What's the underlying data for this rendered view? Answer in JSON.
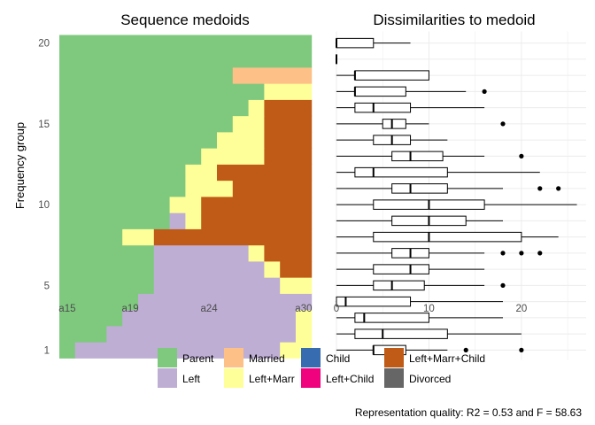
{
  "chart_data": [
    {
      "type": "heatmap",
      "title": "Sequence medoids",
      "ylabel": "Frequency group",
      "x_ticks": [
        "a15",
        "a19",
        "a24",
        "a30"
      ],
      "x_tick_positions": [
        1,
        5,
        10,
        16
      ],
      "y_ticks": [
        "1",
        "5",
        "10",
        "15",
        "20"
      ],
      "n_positions": 16,
      "states": [
        "Parent",
        "Left",
        "Married",
        "Left+Marr",
        "Child",
        "Left+Child",
        "Left+Marr+Child",
        "Divorced"
      ],
      "colors": {
        "Parent": "#7FC97F",
        "Left": "#BEAED4",
        "Married": "#FDC086",
        "Left+Marr": "#FFFF99",
        "Child": "#386CB0",
        "Left+Child": "#F0027F",
        "Left+Marr+Child": "#BF5B17",
        "Divorced": "#666666"
      },
      "sequences": [
        {
          "group": 1,
          "runs": [
            [
              "Parent",
              1
            ],
            [
              "Left",
              13
            ],
            [
              "Left+Marr",
              2
            ]
          ]
        },
        {
          "group": 2,
          "runs": [
            [
              "Parent",
              3
            ],
            [
              "Left",
              12
            ],
            [
              "Left+Marr",
              1
            ]
          ]
        },
        {
          "group": 3,
          "runs": [
            [
              "Parent",
              4
            ],
            [
              "Left",
              11
            ],
            [
              "Left+Marr",
              1
            ]
          ]
        },
        {
          "group": 4,
          "runs": [
            [
              "Parent",
              5
            ],
            [
              "Left",
              11
            ]
          ]
        },
        {
          "group": 5,
          "runs": [
            [
              "Parent",
              6
            ],
            [
              "Left",
              8
            ],
            [
              "Left+Marr",
              2
            ]
          ]
        },
        {
          "group": 6,
          "runs": [
            [
              "Parent",
              6
            ],
            [
              "Left",
              7
            ],
            [
              "Left+Marr",
              1
            ],
            [
              "Left+Marr+Child",
              2
            ]
          ]
        },
        {
          "group": 7,
          "runs": [
            [
              "Parent",
              6
            ],
            [
              "Left",
              6
            ],
            [
              "Left+Marr",
              1
            ],
            [
              "Left+Marr+Child",
              3
            ]
          ]
        },
        {
          "group": 8,
          "runs": [
            [
              "Parent",
              4
            ],
            [
              "Left+Marr",
              2
            ],
            [
              "Left+Marr+Child",
              10
            ]
          ]
        },
        {
          "group": 9,
          "runs": [
            [
              "Parent",
              7
            ],
            [
              "Left",
              1
            ],
            [
              "Left+Marr",
              1
            ],
            [
              "Left+Marr+Child",
              7
            ]
          ]
        },
        {
          "group": 10,
          "runs": [
            [
              "Parent",
              7
            ],
            [
              "Left+Marr",
              2
            ],
            [
              "Left+Marr+Child",
              7
            ]
          ]
        },
        {
          "group": 11,
          "runs": [
            [
              "Parent",
              8
            ],
            [
              "Left+Marr",
              3
            ],
            [
              "Left+Marr+Child",
              5
            ]
          ]
        },
        {
          "group": 12,
          "runs": [
            [
              "Parent",
              8
            ],
            [
              "Left+Marr",
              2
            ],
            [
              "Left+Marr+Child",
              6
            ]
          ]
        },
        {
          "group": 13,
          "runs": [
            [
              "Parent",
              9
            ],
            [
              "Left+Marr",
              4
            ],
            [
              "Left+Marr+Child",
              3
            ]
          ]
        },
        {
          "group": 14,
          "runs": [
            [
              "Parent",
              10
            ],
            [
              "Left+Marr",
              3
            ],
            [
              "Left+Marr+Child",
              3
            ]
          ]
        },
        {
          "group": 15,
          "runs": [
            [
              "Parent",
              11
            ],
            [
              "Left+Marr",
              2
            ],
            [
              "Left+Marr+Child",
              3
            ]
          ]
        },
        {
          "group": 16,
          "runs": [
            [
              "Parent",
              12
            ],
            [
              "Left+Marr",
              1
            ],
            [
              "Left+Marr+Child",
              3
            ]
          ]
        },
        {
          "group": 17,
          "runs": [
            [
              "Parent",
              13
            ],
            [
              "Left+Marr",
              3
            ]
          ]
        },
        {
          "group": 18,
          "runs": [
            [
              "Parent",
              11
            ],
            [
              "Married",
              5
            ]
          ]
        },
        {
          "group": 19,
          "runs": [
            [
              "Parent",
              16
            ]
          ]
        },
        {
          "group": 20,
          "runs": [
            [
              "Parent",
              16
            ]
          ]
        }
      ]
    },
    {
      "type": "boxplot",
      "title": "Dissimilarities to medoid",
      "x_ticks": [
        "0",
        "10",
        "20"
      ],
      "x_tick_values": [
        0,
        10,
        20
      ],
      "xlim": [
        0,
        27
      ],
      "grid": true,
      "boxes": [
        {
          "group": 1,
          "whisker_low": 0,
          "q1": 4,
          "median": 4,
          "q3": 7.5,
          "whisker_high": 12,
          "outliers": [
            14,
            20
          ]
        },
        {
          "group": 2,
          "whisker_low": 0,
          "q1": 2,
          "median": 5,
          "q3": 12,
          "whisker_high": 20,
          "outliers": []
        },
        {
          "group": 3,
          "whisker_low": 0,
          "q1": 2,
          "median": 3,
          "q3": 10,
          "whisker_high": 18,
          "outliers": []
        },
        {
          "group": 4,
          "whisker_low": 0,
          "q1": 0,
          "median": 1,
          "q3": 8,
          "whisker_high": 18,
          "outliers": []
        },
        {
          "group": 5,
          "whisker_low": 0,
          "q1": 4,
          "median": 6,
          "q3": 9.5,
          "whisker_high": 16,
          "outliers": [
            18
          ]
        },
        {
          "group": 6,
          "whisker_low": 0,
          "q1": 4,
          "median": 8,
          "q3": 10,
          "whisker_high": 16,
          "outliers": []
        },
        {
          "group": 7,
          "whisker_low": 0,
          "q1": 6,
          "median": 8,
          "q3": 10,
          "whisker_high": 16,
          "outliers": [
            18,
            20,
            22
          ]
        },
        {
          "group": 8,
          "whisker_low": 0,
          "q1": 4,
          "median": 10,
          "q3": 20,
          "whisker_high": 24,
          "outliers": []
        },
        {
          "group": 9,
          "whisker_low": 0,
          "q1": 6,
          "median": 10,
          "q3": 14,
          "whisker_high": 18,
          "outliers": []
        },
        {
          "group": 10,
          "whisker_low": 0,
          "q1": 4,
          "median": 10,
          "q3": 16,
          "whisker_high": 26,
          "outliers": []
        },
        {
          "group": 11,
          "whisker_low": 0,
          "q1": 6,
          "median": 8,
          "q3": 12,
          "whisker_high": 18,
          "outliers": [
            22,
            24
          ]
        },
        {
          "group": 12,
          "whisker_low": 0,
          "q1": 2,
          "median": 4,
          "q3": 12,
          "whisker_high": 22,
          "outliers": []
        },
        {
          "group": 13,
          "whisker_low": 0,
          "q1": 6,
          "median": 8,
          "q3": 11.5,
          "whisker_high": 16,
          "outliers": [
            20
          ]
        },
        {
          "group": 14,
          "whisker_low": 0,
          "q1": 4,
          "median": 6,
          "q3": 8,
          "whisker_high": 12,
          "outliers": []
        },
        {
          "group": 15,
          "whisker_low": 0,
          "q1": 5,
          "median": 6,
          "q3": 7.5,
          "whisker_high": 10,
          "outliers": [
            18
          ]
        },
        {
          "group": 16,
          "whisker_low": 0,
          "q1": 2,
          "median": 4,
          "q3": 8,
          "whisker_high": 16,
          "outliers": []
        },
        {
          "group": 17,
          "whisker_low": 0,
          "q1": 2,
          "median": 2,
          "q3": 7.5,
          "whisker_high": 14,
          "outliers": [
            16
          ]
        },
        {
          "group": 18,
          "whisker_low": 0,
          "q1": 2,
          "median": 2,
          "q3": 10,
          "whisker_high": 10,
          "outliers": []
        },
        {
          "group": 19,
          "whisker_low": 0,
          "q1": 0,
          "median": 0,
          "q3": 0,
          "whisker_high": 0,
          "outliers": []
        },
        {
          "group": 20,
          "whisker_low": 0,
          "q1": 0,
          "median": 0,
          "q3": 4,
          "whisker_high": 8,
          "outliers": []
        }
      ]
    }
  ],
  "legend": {
    "placement": "bottom",
    "items": [
      "Parent",
      "Married",
      "Child",
      "Left+Marr+Child",
      "Left",
      "Left+Marr",
      "Left+Child",
      "Divorced"
    ]
  },
  "caption": "Representation quality: R2 = 0.53 and F = 58.63"
}
